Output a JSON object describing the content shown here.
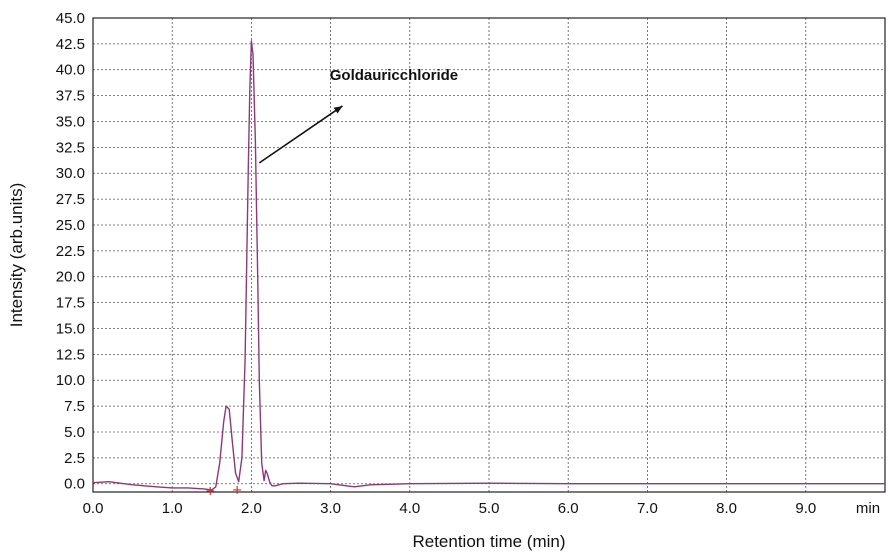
{
  "chart_data": {
    "type": "line",
    "title": "",
    "xlabel": "Retention time (min)",
    "ylabel": "Intensity (arb.units)",
    "x_unit_label": "min",
    "xlim": [
      0,
      10
    ],
    "ylim": [
      -0.8,
      45
    ],
    "x_ticks": [
      0,
      1,
      2,
      3,
      4,
      5,
      6,
      7,
      8,
      9
    ],
    "x_tick_labels": [
      "0.0",
      "1.0",
      "2.0",
      "3.0",
      "4.0",
      "5.0",
      "6.0",
      "7.0",
      "8.0",
      "9.0"
    ],
    "y_ticks": [
      0,
      2.5,
      5,
      7.5,
      10,
      12.5,
      15,
      17.5,
      20,
      22.5,
      25,
      27.5,
      30,
      32.5,
      35,
      37.5,
      40,
      42.5,
      45
    ],
    "y_tick_labels": [
      "0.0",
      "2.5",
      "5.0",
      "7.5",
      "10.0",
      "12.5",
      "15.0",
      "17.5",
      "20.0",
      "22.5",
      "25.0",
      "27.5",
      "30.0",
      "32.5",
      "35.0",
      "37.5",
      "40.0",
      "42.5",
      "45.0"
    ],
    "grid": true,
    "series": [
      {
        "color": "#8a3a7a",
        "x": [
          0.0,
          0.2,
          0.5,
          0.8,
          1.0,
          1.2,
          1.4,
          1.5,
          1.55,
          1.6,
          1.65,
          1.68,
          1.72,
          1.76,
          1.8,
          1.84,
          1.88,
          1.92,
          1.96,
          1.98,
          2.0,
          2.02,
          2.05,
          2.08,
          2.1,
          2.13,
          2.16,
          2.18,
          2.2,
          2.23,
          2.26,
          2.3,
          2.4,
          2.6,
          3.0,
          3.2,
          3.3,
          3.5,
          4.0,
          5.0,
          6.0,
          7.0,
          8.0,
          9.0,
          10.0
        ],
        "y": [
          0.1,
          0.2,
          -0.1,
          -0.3,
          -0.4,
          -0.4,
          -0.5,
          -0.6,
          -0.3,
          2.0,
          6.0,
          7.5,
          7.2,
          4.0,
          1.0,
          0.2,
          2.5,
          12.0,
          30.0,
          38.0,
          42.8,
          41.5,
          33.0,
          20.0,
          10.0,
          2.0,
          0.3,
          1.3,
          1.0,
          0.2,
          -0.2,
          -0.2,
          0.0,
          0.05,
          0.0,
          -0.2,
          -0.3,
          -0.1,
          0.0,
          0.05,
          0.0,
          0.0,
          0.0,
          0.0,
          0.0
        ]
      }
    ],
    "markers": [
      {
        "x": 1.48,
        "y": -0.7,
        "color": "#c0392b"
      },
      {
        "x": 1.82,
        "y": -0.6,
        "color": "#c0392b"
      }
    ],
    "annotations": [
      {
        "text": "Goldauricchloride",
        "text_x": 3.8,
        "text_y": 39,
        "arrow_from": [
          2.1,
          31
        ],
        "arrow_to": [
          3.15,
          36.5
        ]
      }
    ]
  }
}
